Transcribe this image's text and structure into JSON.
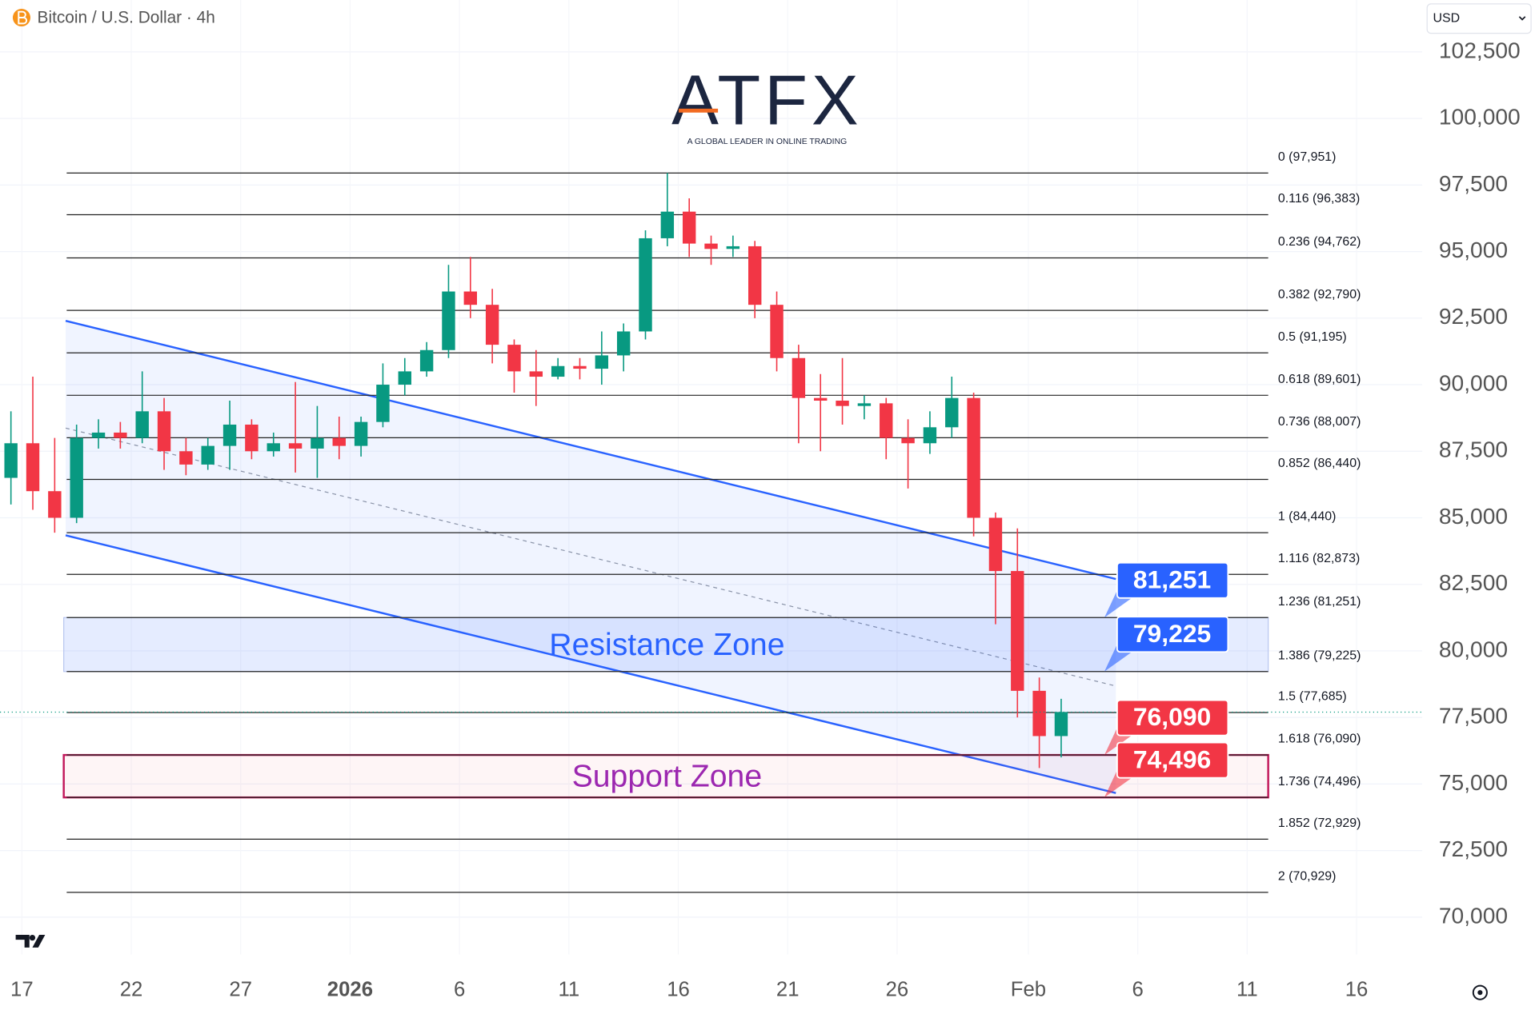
{
  "chart_data": {
    "type": "candlestick",
    "title": "Bitcoin / U.S. Dollar · 4h",
    "currency": "USD",
    "brand": "ATFX",
    "brand_tagline": "A GLOBAL LEADER IN ONLINE TRADING",
    "up_color": "#089981",
    "down_color": "#f23645",
    "grid": true,
    "xlim": [
      "2025-12-16",
      "2026-02-19"
    ],
    "ylim": [
      68600,
      104450
    ],
    "yticks": [
      {
        "value": 70000,
        "label": "70,000"
      },
      {
        "value": 72500,
        "label": "72,500"
      },
      {
        "value": 75000,
        "label": "75,000"
      },
      {
        "value": 77500,
        "label": "77,500"
      },
      {
        "value": 80000,
        "label": "80,000"
      },
      {
        "value": 82500,
        "label": "82,500"
      },
      {
        "value": 85000,
        "label": "85,000"
      },
      {
        "value": 87500,
        "label": "87,500"
      },
      {
        "value": 90000,
        "label": "90,000"
      },
      {
        "value": 92500,
        "label": "92,500"
      },
      {
        "value": 95000,
        "label": "95,000"
      },
      {
        "value": 97500,
        "label": "97,500"
      },
      {
        "value": 100000,
        "label": "100,000"
      },
      {
        "value": 102500,
        "label": "102,500"
      }
    ],
    "xticks": [
      {
        "value": "2025-12-17",
        "label": "17"
      },
      {
        "value": "2025-12-22",
        "label": "22"
      },
      {
        "value": "2025-12-27",
        "label": "27"
      },
      {
        "value": "2026-01-01",
        "label": "2026"
      },
      {
        "value": "2026-01-06",
        "label": "6"
      },
      {
        "value": "2026-01-11",
        "label": "11"
      },
      {
        "value": "2026-01-16",
        "label": "16"
      },
      {
        "value": "2026-01-21",
        "label": "21"
      },
      {
        "value": "2026-01-26",
        "label": "26"
      },
      {
        "value": "2026-02-01",
        "label": "Feb"
      },
      {
        "value": "2026-02-06",
        "label": "6"
      },
      {
        "value": "2026-02-11",
        "label": "11"
      },
      {
        "value": "2026-02-16",
        "label": "16"
      }
    ],
    "x": [
      "2025-12-16",
      "2025-12-17",
      "2025-12-18",
      "2025-12-19",
      "2025-12-20",
      "2025-12-21",
      "2025-12-22",
      "2025-12-23",
      "2025-12-24",
      "2025-12-25",
      "2025-12-26",
      "2025-12-27",
      "2025-12-28",
      "2025-12-29",
      "2025-12-30",
      "2025-12-31",
      "2026-01-01",
      "2026-01-02",
      "2026-01-03",
      "2026-01-04",
      "2026-01-05",
      "2026-01-06",
      "2026-01-07",
      "2026-01-08",
      "2026-01-09",
      "2026-01-10",
      "2026-01-11",
      "2026-01-12",
      "2026-01-13",
      "2026-01-14",
      "2026-01-15",
      "2026-01-16",
      "2026-01-17",
      "2026-01-18",
      "2026-01-19",
      "2026-01-20",
      "2026-01-21",
      "2026-01-22",
      "2026-01-23",
      "2026-01-24",
      "2026-01-25",
      "2026-01-26",
      "2026-01-27",
      "2026-01-28",
      "2026-01-29",
      "2026-01-30",
      "2026-01-31",
      "2026-02-01",
      "2026-02-02"
    ],
    "open": [
      86500,
      87800,
      86000,
      85000,
      88000,
      88200,
      88000,
      89000,
      87500,
      87000,
      87700,
      88500,
      87500,
      87800,
      87600,
      88000,
      87700,
      88600,
      90000,
      90500,
      91300,
      93500,
      93000,
      91500,
      90500,
      90300,
      90700,
      90600,
      91100,
      92000,
      95500,
      96500,
      95300,
      95100,
      95200,
      93000,
      91000,
      89500,
      89400,
      89200,
      89300,
      88000,
      87800,
      88400,
      89500,
      85000,
      83000,
      78500,
      76800
    ],
    "high": [
      89000,
      90300,
      88000,
      88500,
      88700,
      88600,
      90500,
      89500,
      88000,
      88000,
      89400,
      88700,
      88200,
      90100,
      89200,
      88800,
      88800,
      90800,
      91000,
      91600,
      94500,
      94800,
      93600,
      91700,
      91300,
      91000,
      91000,
      92000,
      92300,
      95800,
      97951,
      97000,
      95600,
      95600,
      95400,
      93500,
      91500,
      90400,
      91000,
      89600,
      89500,
      88700,
      89000,
      90300,
      89700,
      85200,
      84600,
      79000,
      78200
    ],
    "low": [
      85500,
      85300,
      84440,
      84800,
      87600,
      87600,
      87800,
      86800,
      86600,
      86800,
      86800,
      87200,
      87300,
      86700,
      86500,
      87200,
      87300,
      88400,
      89600,
      90300,
      91000,
      92500,
      90800,
      89700,
      89200,
      90200,
      90200,
      90000,
      90500,
      91700,
      95200,
      94800,
      94500,
      94800,
      92500,
      90500,
      87800,
      87500,
      88500,
      88700,
      87200,
      86100,
      87400,
      88000,
      84300,
      81000,
      77500,
      75600,
      76000
    ],
    "close": [
      87800,
      86000,
      85000,
      88000,
      88200,
      88000,
      89000,
      87500,
      87000,
      87700,
      88500,
      87500,
      87800,
      87600,
      88000,
      87700,
      88600,
      90000,
      90500,
      91300,
      93500,
      93000,
      91500,
      90500,
      90300,
      90700,
      90600,
      91100,
      92000,
      95500,
      96500,
      95300,
      95100,
      95200,
      93000,
      91000,
      89500,
      89400,
      89200,
      89300,
      88000,
      87800,
      88400,
      89500,
      85000,
      83000,
      78500,
      76800,
      77700
    ],
    "fib_levels": [
      {
        "value": 97951,
        "label": "0 (97,951)"
      },
      {
        "value": 96383,
        "label": "0.116 (96,383)"
      },
      {
        "value": 94762,
        "label": "0.236 (94,762)"
      },
      {
        "value": 92790,
        "label": "0.382 (92,790)"
      },
      {
        "value": 91195,
        "label": "0.5 (91,195)"
      },
      {
        "value": 89601,
        "label": "0.618 (89,601)"
      },
      {
        "value": 88007,
        "label": "0.736 (88,007)"
      },
      {
        "value": 86440,
        "label": "0.852 (86,440)"
      },
      {
        "value": 84440,
        "label": "1 (84,440)"
      },
      {
        "value": 82873,
        "label": "1.116 (82,873)"
      },
      {
        "value": 81251,
        "label": "1.236 (81,251)"
      },
      {
        "value": 79225,
        "label": "1.386 (79,225)"
      },
      {
        "value": 77685,
        "label": "1.5 (77,685)"
      },
      {
        "value": 76090,
        "label": "1.618 (76,090)"
      },
      {
        "value": 74496,
        "label": "1.736 (74,496)"
      },
      {
        "value": 72929,
        "label": "1.852 (72,929)"
      },
      {
        "value": 70929,
        "label": "2 (70,929)"
      }
    ],
    "zones": [
      {
        "label": "Resistance Zone",
        "from": 79225,
        "to": 81251,
        "color": "#2962ff"
      },
      {
        "label": "Support Zone",
        "from": 74496,
        "to": 76090,
        "color": "#9c27b0"
      }
    ],
    "channel": {
      "x": [
        "2025-12-19",
        "2026-02-05"
      ],
      "upper": [
        92400,
        82700
      ],
      "lower": [
        84340,
        74660
      ],
      "color": "#2962ff"
    },
    "annotations": [
      {
        "value": 81251,
        "label": "81,251",
        "color": "#2962ff"
      },
      {
        "value": 79225,
        "label": "79,225",
        "color": "#2962ff"
      },
      {
        "value": 76090,
        "label": "76,090",
        "color": "#f23645"
      },
      {
        "value": 74496,
        "label": "74,496",
        "color": "#f23645"
      }
    ]
  }
}
